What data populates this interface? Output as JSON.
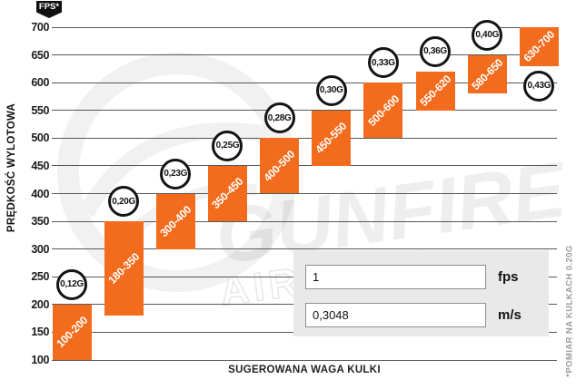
{
  "footnote": "*POMIAR NA KULKACH 0.20G",
  "watermark": {
    "brand": "GUNFIRE",
    "sub": "AIRSOFT"
  },
  "converter": {
    "fps_value": "1",
    "fps_unit": "fps",
    "ms_value": "0,3048",
    "ms_unit": "m/s"
  },
  "chart_data": {
    "type": "bar",
    "title": "",
    "unit_badge": "FPS*",
    "xlabel": "SUGEROWANA WAGA KULKI",
    "ylabel": "PRĘDKOŚĆ WYLOTOWA",
    "ylim": [
      100,
      700
    ],
    "y_ticks": [
      700,
      650,
      600,
      550,
      500,
      450,
      400,
      350,
      300,
      250,
      200,
      150,
      100
    ],
    "grid": true,
    "bar_color": "#F36C1E",
    "bars": [
      {
        "weight": "0,12G",
        "fps_min": 100,
        "fps_max": 200,
        "range_label": "100-200",
        "weight_label_position": "above"
      },
      {
        "weight": "0,20G",
        "fps_min": 180,
        "fps_max": 350,
        "range_label": "180-350",
        "weight_label_position": "above"
      },
      {
        "weight": "0,23G",
        "fps_min": 300,
        "fps_max": 400,
        "range_label": "300-400",
        "weight_label_position": "above"
      },
      {
        "weight": "0,25G",
        "fps_min": 350,
        "fps_max": 450,
        "range_label": "350-450",
        "weight_label_position": "above"
      },
      {
        "weight": "0,28G",
        "fps_min": 400,
        "fps_max": 500,
        "range_label": "400-500",
        "weight_label_position": "above"
      },
      {
        "weight": "0,30G",
        "fps_min": 450,
        "fps_max": 550,
        "range_label": "450-550",
        "weight_label_position": "above"
      },
      {
        "weight": "0,33G",
        "fps_min": 500,
        "fps_max": 600,
        "range_label": "500-600",
        "weight_label_position": "above"
      },
      {
        "weight": "0,36G",
        "fps_min": 550,
        "fps_max": 620,
        "range_label": "550-620",
        "weight_label_position": "above"
      },
      {
        "weight": "0,40G",
        "fps_min": 580,
        "fps_max": 650,
        "range_label": "580-650",
        "weight_label_position": "above"
      },
      {
        "weight": "0,43G",
        "fps_min": 630,
        "fps_max": 700,
        "range_label": "630-700",
        "weight_label_position": "below"
      }
    ]
  }
}
